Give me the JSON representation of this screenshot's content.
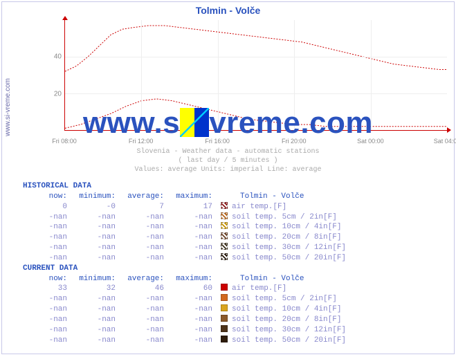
{
  "sidebar_url": "www.si-vreme.com",
  "title": "Tolmin - Volče",
  "watermark_text": "www.si-vreme.com",
  "chart": {
    "type": "line",
    "ylim": [
      0,
      60
    ],
    "yticks": [
      20,
      40
    ],
    "xticks": [
      "Fri 08:00",
      "Fri 12:00",
      "Fri 16:00",
      "Fri 20:00",
      "Sat 00:00",
      "Sat 04:00"
    ],
    "grid_color": "#eeeeee",
    "axis_color": "#cc0000",
    "background_color": "#ffffff",
    "series": [
      {
        "name": "upper",
        "color": "#cc0000",
        "dash": "2,2",
        "width": 1,
        "points": [
          [
            0.0,
            32
          ],
          [
            0.03,
            35
          ],
          [
            0.06,
            40
          ],
          [
            0.09,
            46
          ],
          [
            0.12,
            52
          ],
          [
            0.15,
            55
          ],
          [
            0.18,
            56
          ],
          [
            0.22,
            57
          ],
          [
            0.26,
            57
          ],
          [
            0.3,
            56
          ],
          [
            0.34,
            55
          ],
          [
            0.38,
            54
          ],
          [
            0.42,
            53
          ],
          [
            0.46,
            52
          ],
          [
            0.5,
            51
          ],
          [
            0.54,
            50
          ],
          [
            0.58,
            49
          ],
          [
            0.62,
            48
          ],
          [
            0.66,
            46
          ],
          [
            0.7,
            44
          ],
          [
            0.74,
            42
          ],
          [
            0.78,
            40
          ],
          [
            0.82,
            38
          ],
          [
            0.86,
            36
          ],
          [
            0.9,
            35
          ],
          [
            0.94,
            34
          ],
          [
            0.98,
            33
          ],
          [
            1.0,
            33
          ]
        ]
      },
      {
        "name": "lower",
        "color": "#cc0000",
        "dash": "2,2",
        "width": 1,
        "points": [
          [
            0.0,
            1
          ],
          [
            0.04,
            3
          ],
          [
            0.08,
            6
          ],
          [
            0.12,
            9
          ],
          [
            0.16,
            13
          ],
          [
            0.2,
            16
          ],
          [
            0.24,
            17
          ],
          [
            0.28,
            16
          ],
          [
            0.32,
            14
          ],
          [
            0.36,
            12
          ],
          [
            0.4,
            10
          ],
          [
            0.44,
            8
          ],
          [
            0.48,
            6
          ],
          [
            0.52,
            5
          ],
          [
            0.56,
            4
          ],
          [
            0.6,
            3
          ],
          [
            0.64,
            3
          ],
          [
            0.68,
            2
          ],
          [
            0.72,
            2
          ],
          [
            0.76,
            2
          ],
          [
            0.8,
            2
          ],
          [
            0.84,
            2
          ],
          [
            0.88,
            2
          ],
          [
            0.92,
            2
          ],
          [
            0.96,
            2
          ],
          [
            1.0,
            2
          ]
        ]
      }
    ]
  },
  "caption": {
    "line1": "Slovenia - Weather data - automatic stations",
    "line2": "( last day / 5 minutes )",
    "line3": "Values: average  Units: imperial  Line: average"
  },
  "table": {
    "columns": [
      "now:",
      "minimum:",
      "average:",
      "maximum:"
    ],
    "label_header": "Tolmin - Volče",
    "historical": {
      "title": "HISTORICAL DATA",
      "rows": [
        {
          "vals": [
            "0",
            "-0",
            "7",
            "17"
          ],
          "swatch": "#8b1a1a",
          "swstyle": "striped",
          "label": "air temp.[F]"
        },
        {
          "vals": [
            "-nan",
            "-nan",
            "-nan",
            "-nan"
          ],
          "swatch": "#b5651d",
          "swstyle": "striped",
          "label": "soil temp. 5cm / 2in[F]"
        },
        {
          "vals": [
            "-nan",
            "-nan",
            "-nan",
            "-nan"
          ],
          "swatch": "#c49102",
          "swstyle": "striped",
          "label": "soil temp. 10cm / 4in[F]"
        },
        {
          "vals": [
            "-nan",
            "-nan",
            "-nan",
            "-nan"
          ],
          "swatch": "#6b4226",
          "swstyle": "striped",
          "label": "soil temp. 20cm / 8in[F]"
        },
        {
          "vals": [
            "-nan",
            "-nan",
            "-nan",
            "-nan"
          ],
          "swatch": "#3b2f1b",
          "swstyle": "striped",
          "label": "soil temp. 30cm / 12in[F]"
        },
        {
          "vals": [
            "-nan",
            "-nan",
            "-nan",
            "-nan"
          ],
          "swatch": "#26180b",
          "swstyle": "striped",
          "label": "soil temp. 50cm / 20in[F]"
        }
      ]
    },
    "current": {
      "title": "CURRENT DATA",
      "rows": [
        {
          "vals": [
            "33",
            "32",
            "46",
            "60"
          ],
          "swatch": "#cc0000",
          "swstyle": "solid",
          "label": "air temp.[F]"
        },
        {
          "vals": [
            "-nan",
            "-nan",
            "-nan",
            "-nan"
          ],
          "swatch": "#d2691e",
          "swstyle": "solid",
          "label": "soil temp. 5cm / 2in[F]"
        },
        {
          "vals": [
            "-nan",
            "-nan",
            "-nan",
            "-nan"
          ],
          "swatch": "#daa520",
          "swstyle": "solid",
          "label": "soil temp. 10cm / 4in[F]"
        },
        {
          "vals": [
            "-nan",
            "-nan",
            "-nan",
            "-nan"
          ],
          "swatch": "#8b5a2b",
          "swstyle": "solid",
          "label": "soil temp. 20cm / 8in[F]"
        },
        {
          "vals": [
            "-nan",
            "-nan",
            "-nan",
            "-nan"
          ],
          "swatch": "#4d3319",
          "swstyle": "solid",
          "label": "soil temp. 30cm / 12in[F]"
        },
        {
          "vals": [
            "-nan",
            "-nan",
            "-nan",
            "-nan"
          ],
          "swatch": "#2e1c0b",
          "swstyle": "solid",
          "label": "soil temp. 50cm / 20in[F]"
        }
      ]
    }
  }
}
